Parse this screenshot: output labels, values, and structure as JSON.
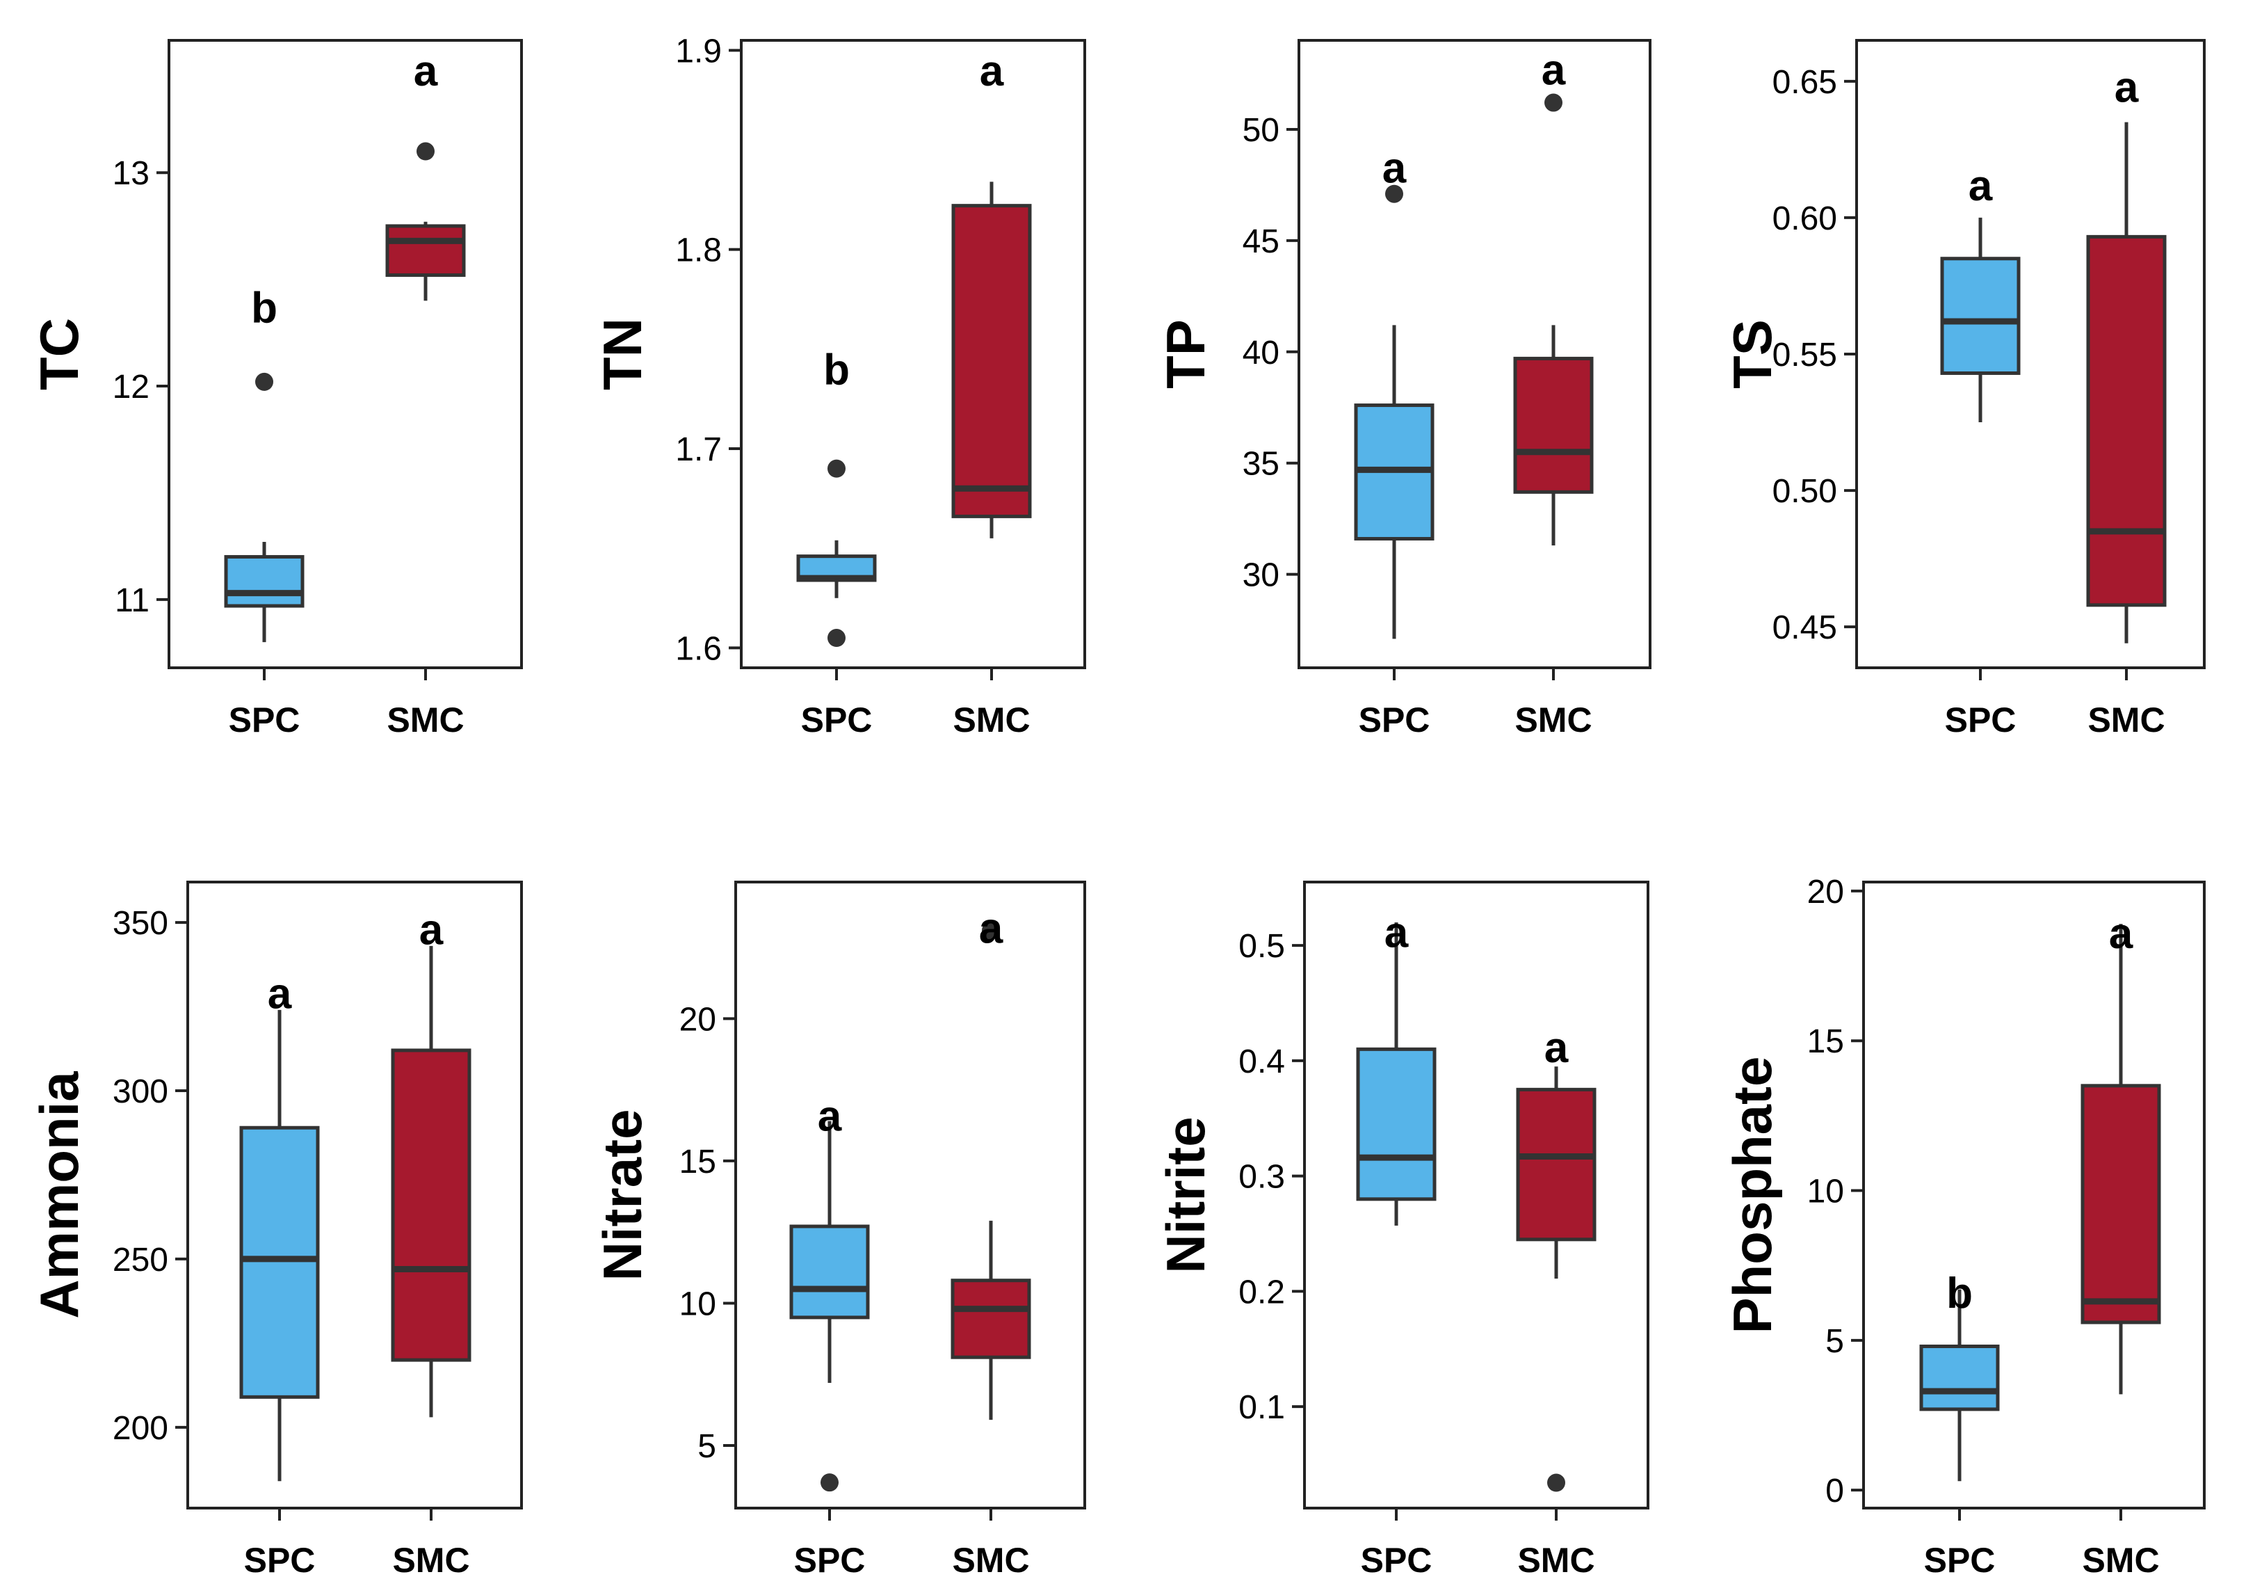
{
  "figure": {
    "description_colors": {
      "SPC": "#56B4E9",
      "SMC": "#A6192E",
      "outline": "#333333",
      "median": "#333333",
      "outlier": "#333333"
    },
    "categories": [
      "SPC",
      "SMC"
    ]
  },
  "chart_data": [
    {
      "type": "box",
      "ylabel": "TC",
      "ylim": [
        10.68,
        13.62
      ],
      "ticks": [
        11,
        12,
        13
      ],
      "tick_labels": [
        "11",
        "12",
        "13"
      ],
      "categories": [
        "SPC",
        "SMC"
      ],
      "boxes": [
        {
          "name": "SPC",
          "min": 10.8,
          "q1": 10.97,
          "median": 11.03,
          "q3": 11.2,
          "max": 11.27,
          "outliers": [
            12.02
          ],
          "letter": "b",
          "letter_value": 12.37
        },
        {
          "name": "SMC",
          "min": 12.4,
          "q1": 12.52,
          "median": 12.68,
          "q3": 12.75,
          "max": 12.77,
          "outliers": [
            13.1
          ],
          "letter": "a",
          "letter_value": 13.48
        }
      ]
    },
    {
      "type": "box",
      "ylabel": "TN",
      "ylim": [
        1.59,
        1.905
      ],
      "ticks": [
        1.6,
        1.7,
        1.8,
        1.9
      ],
      "tick_labels": [
        "1.6",
        "1.7",
        "1.8",
        "1.9"
      ],
      "categories": [
        "SPC",
        "SMC"
      ],
      "boxes": [
        {
          "name": "SPC",
          "min": 1.625,
          "q1": 1.634,
          "median": 1.635,
          "q3": 1.646,
          "max": 1.654,
          "outliers": [
            1.69,
            1.605
          ],
          "letter": "b",
          "letter_value": 1.74
        },
        {
          "name": "SMC",
          "min": 1.655,
          "q1": 1.666,
          "median": 1.68,
          "q3": 1.822,
          "max": 1.834,
          "outliers": [],
          "letter": "a",
          "letter_value": 1.89
        }
      ]
    },
    {
      "type": "box",
      "ylabel": "TP",
      "ylim": [
        25.8,
        54
      ],
      "ticks": [
        30,
        35,
        40,
        45,
        50
      ],
      "tick_labels": [
        "30",
        "35",
        "40",
        "45",
        "50"
      ],
      "categories": [
        "SPC",
        "SMC"
      ],
      "boxes": [
        {
          "name": "SPC",
          "min": 27.1,
          "q1": 31.6,
          "median": 34.7,
          "q3": 37.6,
          "max": 41.2,
          "outliers": [
            47.1
          ],
          "letter": "a",
          "letter_value": 48.3
        },
        {
          "name": "SMC",
          "min": 31.3,
          "q1": 33.7,
          "median": 35.5,
          "q3": 39.7,
          "max": 41.2,
          "outliers": [
            51.2
          ],
          "letter": "a",
          "letter_value": 52.7
        }
      ]
    },
    {
      "type": "box",
      "ylabel": "TS",
      "ylim": [
        0.435,
        0.665
      ],
      "ticks": [
        0.45,
        0.5,
        0.55,
        0.6,
        0.65
      ],
      "tick_labels": [
        "0.45",
        "0.50",
        "0.55",
        "0.60",
        "0.65"
      ],
      "categories": [
        "SPC",
        "SMC"
      ],
      "boxes": [
        {
          "name": "SPC",
          "min": 0.525,
          "q1": 0.543,
          "median": 0.562,
          "q3": 0.585,
          "max": 0.6,
          "outliers": [],
          "letter": "a",
          "letter_value": 0.612
        },
        {
          "name": "SMC",
          "min": 0.444,
          "q1": 0.458,
          "median": 0.485,
          "q3": 0.593,
          "max": 0.635,
          "outliers": [],
          "letter": "a",
          "letter_value": 0.648
        }
      ]
    },
    {
      "type": "box",
      "ylabel": "Ammonia",
      "ylim": [
        176,
        362
      ],
      "ticks": [
        200,
        250,
        300,
        350
      ],
      "tick_labels": [
        "200",
        "250",
        "300",
        "350"
      ],
      "categories": [
        "SPC",
        "SMC"
      ],
      "boxes": [
        {
          "name": "SPC",
          "min": 184,
          "q1": 209,
          "median": 250,
          "q3": 289,
          "max": 324,
          "outliers": [],
          "letter": "a",
          "letter_value": 329
        },
        {
          "name": "SMC",
          "min": 203,
          "q1": 220,
          "median": 247,
          "q3": 312,
          "max": 343,
          "outliers": [],
          "letter": "a",
          "letter_value": 348
        }
      ]
    },
    {
      "type": "box",
      "ylabel": "Nitrate",
      "ylim": [
        2.8,
        24.8
      ],
      "ticks": [
        5,
        10,
        15,
        20
      ],
      "tick_labels": [
        "5",
        "10",
        "15",
        "20"
      ],
      "categories": [
        "SPC",
        "SMC"
      ],
      "boxes": [
        {
          "name": "SPC",
          "min": 7.2,
          "q1": 9.5,
          "median": 10.5,
          "q3": 12.7,
          "max": 16.4,
          "outliers": [
            3.7
          ],
          "letter": "a",
          "letter_value": 16.6
        },
        {
          "name": "SMC",
          "min": 5.9,
          "q1": 8.1,
          "median": 9.8,
          "q3": 10.8,
          "max": 12.9,
          "outliers": [
            23.1
          ],
          "letter": "a",
          "letter_value": 23.2
        }
      ]
    },
    {
      "type": "box",
      "ylabel": "Nitrite",
      "ylim": [
        0.012,
        0.555
      ],
      "ticks": [
        0.1,
        0.2,
        0.3,
        0.4,
        0.5
      ],
      "tick_labels": [
        "0.1",
        "0.2",
        "0.3",
        "0.4",
        "0.5"
      ],
      "categories": [
        "SPC",
        "SMC"
      ],
      "boxes": [
        {
          "name": "SPC",
          "min": 0.257,
          "q1": 0.28,
          "median": 0.316,
          "q3": 0.41,
          "max": 0.52,
          "outliers": [],
          "letter": "a",
          "letter_value": 0.512
        },
        {
          "name": "SMC",
          "min": 0.211,
          "q1": 0.245,
          "median": 0.317,
          "q3": 0.375,
          "max": 0.395,
          "outliers": [
            0.034
          ],
          "letter": "a",
          "letter_value": 0.412
        }
      ]
    },
    {
      "type": "box",
      "ylabel": "Phosphate",
      "ylim": [
        -0.6,
        20.3
      ],
      "ticks": [
        0,
        5,
        10,
        15,
        20
      ],
      "tick_labels": [
        "0",
        "5",
        "10",
        "15",
        "20"
      ],
      "categories": [
        "SPC",
        "SMC"
      ],
      "boxes": [
        {
          "name": "SPC",
          "min": 0.3,
          "q1": 2.7,
          "median": 3.3,
          "q3": 4.8,
          "max": 6.7,
          "outliers": [],
          "letter": "b",
          "letter_value": 6.6
        },
        {
          "name": "SMC",
          "min": 3.2,
          "q1": 5.6,
          "median": 6.3,
          "q3": 13.5,
          "max": 18.9,
          "outliers": [],
          "letter": "a",
          "letter_value": 18.6
        }
      ]
    }
  ]
}
